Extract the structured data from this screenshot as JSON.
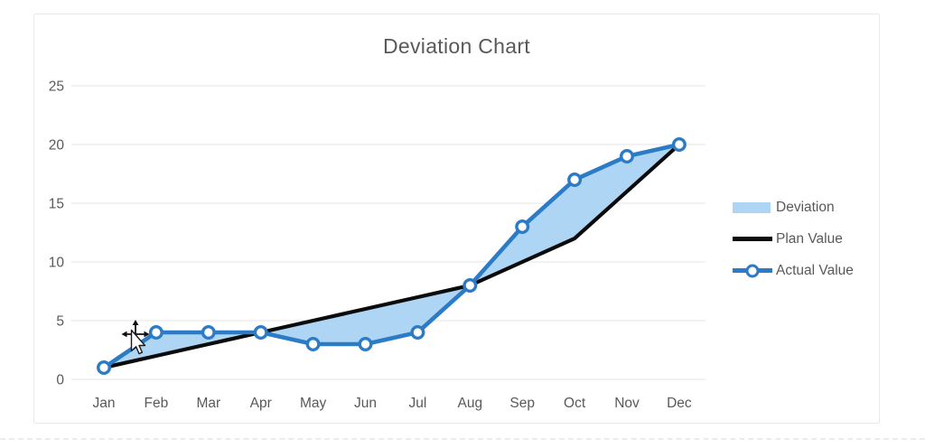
{
  "chart_data": {
    "type": "line",
    "title": "Deviation Chart",
    "categories": [
      "Jan",
      "Feb",
      "Mar",
      "Apr",
      "May",
      "Jun",
      "Jul",
      "Aug",
      "Sep",
      "Oct",
      "Nov",
      "Dec"
    ],
    "series": [
      {
        "name": "Deviation",
        "kind": "area-between",
        "color": "#aed6f4"
      },
      {
        "name": "Plan Value",
        "kind": "line",
        "color": "#0b0b0b",
        "values": [
          1,
          2,
          3,
          4,
          5,
          6,
          7,
          8,
          10,
          12,
          16,
          20
        ]
      },
      {
        "name": "Actual Value",
        "kind": "line-markers",
        "color": "#2b7bc7",
        "values": [
          1,
          4,
          4,
          4,
          3,
          3,
          4,
          8,
          13,
          17,
          19,
          20
        ]
      }
    ],
    "ylim": [
      0,
      25
    ],
    "y_ticks": [
      0,
      5,
      10,
      15,
      20,
      25
    ],
    "grid": true,
    "legend_position": "right",
    "colors": {
      "grid": "#e5e5e5",
      "axis_text": "#595959",
      "title_text": "#595959",
      "marker_fill": "#ffffff"
    }
  },
  "cursor": {
    "type": "move-cursor-with-pointer"
  }
}
